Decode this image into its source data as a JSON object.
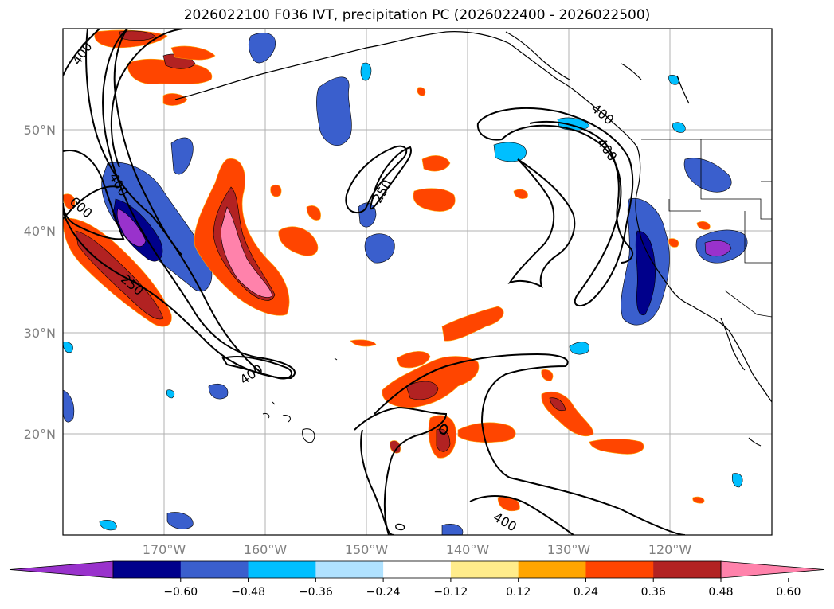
{
  "title": "2026022100 F036 IVT, precipitation PC (2026022400 - 2026022500)",
  "map": {
    "lat_labels": [
      "50°N",
      "40°N",
      "30°N",
      "20°N"
    ],
    "lon_labels": [
      "170°W",
      "160°W",
      "150°W",
      "140°W",
      "130°W",
      "120°W"
    ],
    "contour_labels": [
      "400",
      "400",
      "600",
      "250",
      "400",
      "250",
      "400",
      "400",
      "0",
      "400"
    ]
  },
  "colorbar": {
    "colors": [
      "#9932cc",
      "#00008b",
      "#3a5fcd",
      "#00bfff",
      "#b0e2ff",
      "#ffffff",
      "#ffec8b",
      "#ffa500",
      "#ff4500",
      "#b22222",
      "#ff82ab"
    ],
    "tick_labels": [
      "−0.60",
      "−0.48",
      "−0.36",
      "−0.24",
      "−0.12",
      "0.12",
      "0.24",
      "0.36",
      "0.48",
      "0.60"
    ]
  }
}
